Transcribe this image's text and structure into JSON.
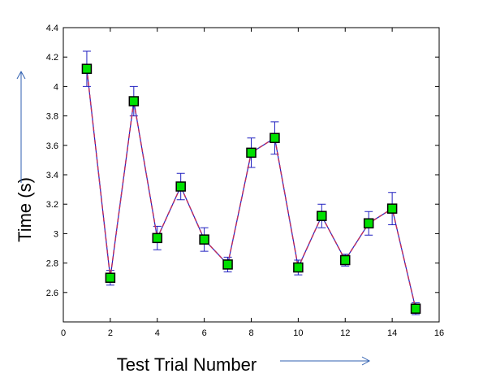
{
  "chart_data": {
    "type": "errorbar-line",
    "x_label": "Test Trial Number",
    "y_label": "Time (s)",
    "x": [
      1,
      2,
      3,
      4,
      5,
      6,
      7,
      8,
      9,
      10,
      11,
      12,
      13,
      14,
      15
    ],
    "series": [
      {
        "color": "#2020c0",
        "values": [
          4.12,
          2.7,
          3.9,
          2.97,
          3.32,
          2.96,
          2.79,
          3.55,
          3.65,
          2.77,
          3.12,
          2.82,
          3.07,
          3.17,
          2.49
        ],
        "errors": [
          0.12,
          0.05,
          0.1,
          0.08,
          0.09,
          0.08,
          0.05,
          0.1,
          0.11,
          0.05,
          0.08,
          0.04,
          0.08,
          0.11,
          0.04
        ]
      }
    ],
    "overlay_color": "#c03060",
    "marker_color": "#00e000",
    "xlim": [
      0,
      16
    ],
    "xticks": [
      0,
      2,
      4,
      6,
      8,
      10,
      12,
      14,
      16
    ],
    "ylim": [
      2.4,
      4.4
    ],
    "yticks": [
      2.6,
      2.8,
      3,
      3.2,
      3.4,
      3.6,
      3.8,
      4,
      4.2,
      4.4
    ]
  }
}
